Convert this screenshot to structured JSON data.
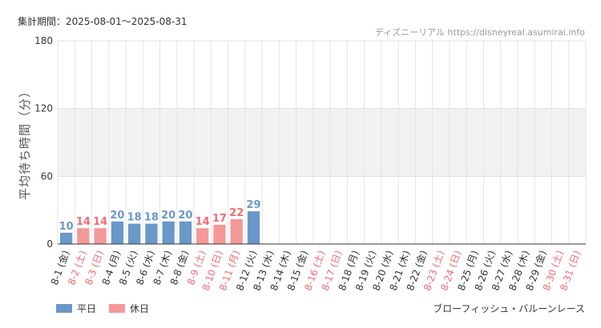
{
  "header": {
    "period": "集計期間：2025-08-01～2025-08-31",
    "credit": "ディズニーリアル https://disneyreal.asumirai.info"
  },
  "legend": {
    "weekday": "平日",
    "holiday": "休日"
  },
  "attraction": "ブローフィッシュ・バルーンレース",
  "colors": {
    "weekday": "#6a98c8",
    "holiday": "#f49899",
    "holiday_text": "#f26b72",
    "weekday_text": "#333333",
    "band": "#f2f2f2"
  },
  "chart_data": {
    "type": "bar",
    "ylabel": "平均待ち時間（分）",
    "ylim": [
      0,
      180
    ],
    "yticks": [
      0,
      60,
      120,
      180
    ],
    "categories": [
      "8-1 (金)",
      "8-2 (土)",
      "8-3 (日)",
      "8-4 (月)",
      "8-5 (火)",
      "8-6 (水)",
      "8-7 (木)",
      "8-8 (金)",
      "8-9 (土)",
      "8-10 (日)",
      "8-11 (月)",
      "8-12 (火)",
      "8-13 (水)",
      "8-14 (木)",
      "8-15 (金)",
      "8-16 (土)",
      "8-17 (日)",
      "8-18 (月)",
      "8-19 (火)",
      "8-20 (水)",
      "8-21 (木)",
      "8-22 (金)",
      "8-23 (土)",
      "8-24 (日)",
      "8-25 (月)",
      "8-26 (火)",
      "8-27 (水)",
      "8-28 (木)",
      "8-29 (金)",
      "8-30 (土)",
      "8-31 (日)"
    ],
    "holiday": [
      false,
      true,
      true,
      false,
      false,
      false,
      false,
      false,
      true,
      true,
      true,
      false,
      false,
      false,
      false,
      true,
      true,
      false,
      false,
      false,
      false,
      false,
      true,
      true,
      false,
      false,
      false,
      false,
      false,
      true,
      true
    ],
    "values": [
      10,
      14,
      14,
      20,
      18,
      18,
      20,
      20,
      14,
      17,
      22,
      29,
      null,
      null,
      null,
      null,
      null,
      null,
      null,
      null,
      null,
      null,
      null,
      null,
      null,
      null,
      null,
      null,
      null,
      null,
      null
    ]
  }
}
